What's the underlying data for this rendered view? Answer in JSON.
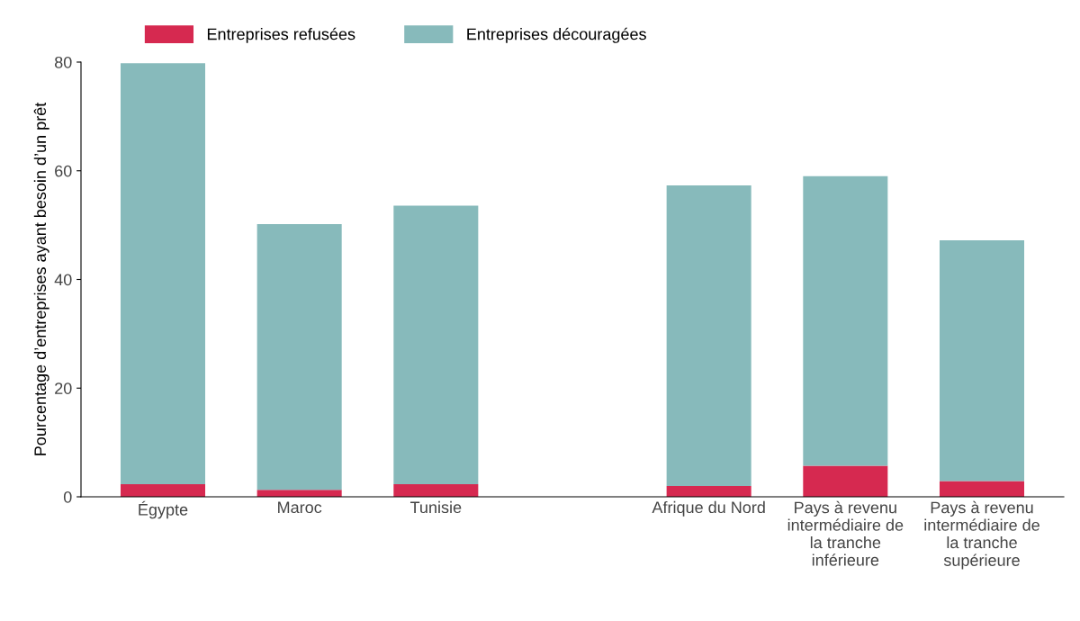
{
  "chart_data": {
    "type": "bar",
    "stacked": true,
    "ylabel": "Pourcentage d’entreprises ayant besoin d’un prêt",
    "categories": [
      "Égypte",
      "Maroc",
      "Tunisie",
      null,
      "Afrique du Nord",
      "Pays à revenu\nintermédiaire de\nla tranche\ninférieure",
      "Pays à revenu\nintermédiaire de\nla tranche\nsupérieure"
    ],
    "series": [
      {
        "name": "Entreprises refusées",
        "color": "#d62950",
        "values": [
          2.3,
          1.3,
          2.3,
          null,
          2.0,
          5.7,
          2.9
        ]
      },
      {
        "name": "Entreprises découragées",
        "color": "#87babb",
        "values": [
          77.5,
          48.9,
          51.3,
          null,
          55.3,
          53.3,
          44.3
        ]
      }
    ],
    "ylim": [
      0,
      80
    ],
    "yticks": [
      0,
      20,
      40,
      60,
      80
    ],
    "grid": false,
    "legend": "top left"
  }
}
